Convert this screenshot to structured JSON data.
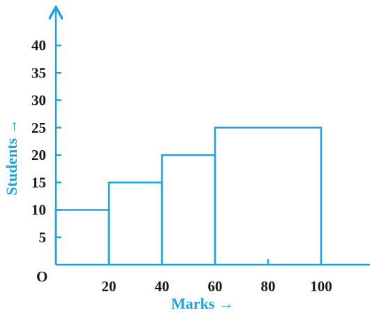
{
  "chart_data": {
    "type": "bar",
    "subtype": "histogram",
    "title": "",
    "xlabel": "Marks →",
    "ylabel": "Students →",
    "origin_label": "O",
    "bins": [
      {
        "from": 0,
        "to": 20,
        "value": 10
      },
      {
        "from": 20,
        "to": 40,
        "value": 15
      },
      {
        "from": 40,
        "to": 60,
        "value": 20
      },
      {
        "from": 60,
        "to": 100,
        "value": 25
      }
    ],
    "x_ticks": [
      20,
      40,
      60,
      80,
      100
    ],
    "y_ticks": [
      5,
      10,
      15,
      20,
      25,
      30,
      35,
      40
    ],
    "xlim": [
      0,
      115
    ],
    "ylim": [
      0,
      47
    ],
    "grid": false,
    "colors": {
      "axis": "#1fa3dc",
      "bars": "#1fa3dc",
      "text": "#1a1a1a"
    }
  }
}
